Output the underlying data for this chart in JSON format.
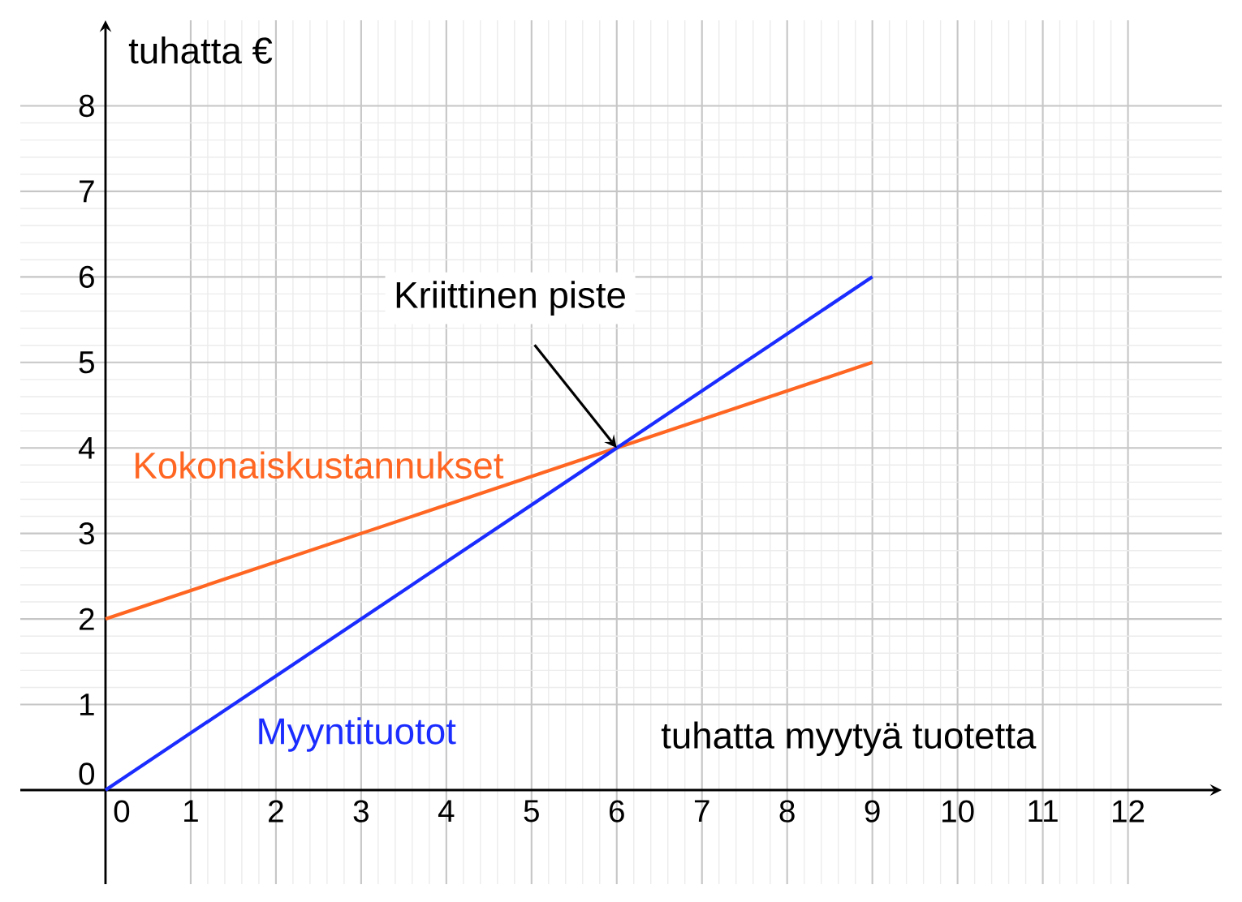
{
  "chart_data": {
    "type": "line",
    "xlabel": "tuhatta myytyä tuotetta",
    "ylabel": "tuhatta €",
    "x": [
      0,
      9
    ],
    "series": [
      {
        "name": "Kokonaiskustannukset",
        "color": "#ff6622",
        "values": [
          2,
          5
        ]
      },
      {
        "name": "Myyntituotot",
        "color": "#1a2cff",
        "values": [
          0,
          6
        ]
      }
    ],
    "annotations": [
      "Kriittinen piste"
    ],
    "xlim": [
      -1,
      13.1
    ],
    "ylim": [
      -1.1,
      9
    ],
    "xticks": [
      0,
      1,
      2,
      3,
      4,
      5,
      6,
      7,
      8,
      9,
      10,
      11,
      12
    ],
    "yticks": [
      0,
      1,
      2,
      3,
      4,
      5,
      6,
      7,
      8
    ],
    "grid": true,
    "marker": "none",
    "line_style": "solid"
  }
}
